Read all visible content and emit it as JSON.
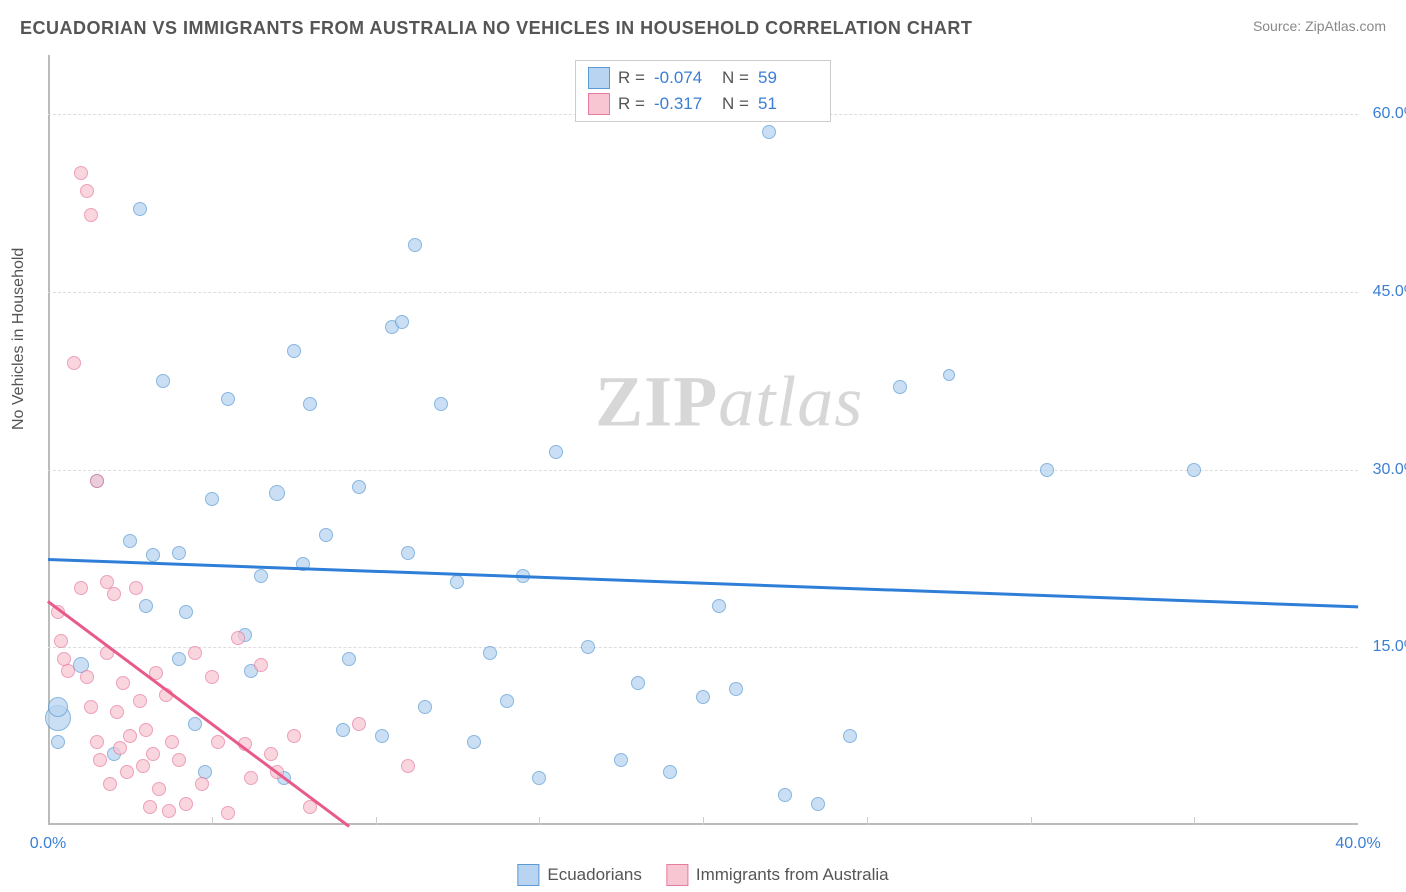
{
  "title": "ECUADORIAN VS IMMIGRANTS FROM AUSTRALIA NO VEHICLES IN HOUSEHOLD CORRELATION CHART",
  "source_label": "Source: ZipAtlas.com",
  "y_axis_label": "No Vehicles in Household",
  "watermark": {
    "part1": "ZIP",
    "part2": "atlas"
  },
  "chart": {
    "type": "scatter",
    "background_color": "#ffffff",
    "grid_color": "#dddddd",
    "axis_color": "#bbbbbb",
    "xlim": [
      0,
      40
    ],
    "ylim": [
      0,
      65
    ],
    "x_ticks": [
      0,
      40
    ],
    "x_tick_labels": [
      "0.0%",
      "40.0%"
    ],
    "x_minor_ticks": [
      5,
      10,
      15,
      20,
      25,
      30,
      35
    ],
    "y_ticks": [
      15,
      30,
      45,
      60
    ],
    "y_tick_labels": [
      "15.0%",
      "30.0%",
      "45.0%",
      "60.0%"
    ],
    "tick_label_color": "#3a7fd5",
    "tick_label_fontsize": 16,
    "series": [
      {
        "name": "Ecuadorians",
        "marker_fill": "#b8d4f0",
        "marker_stroke": "#5a9bd5",
        "marker_opacity": 0.72,
        "marker_radius_range": [
          5,
          14
        ],
        "trend": {
          "x1": 0,
          "y1": 22.5,
          "x2": 40,
          "y2": 18.5,
          "color": "#2f7ed8",
          "width": 2.5
        },
        "R": "-0.074",
        "N": "59",
        "points": [
          {
            "x": 0.3,
            "y": 9.0,
            "r": 13
          },
          {
            "x": 0.3,
            "y": 10.0,
            "r": 10
          },
          {
            "x": 0.3,
            "y": 7.0,
            "r": 7
          },
          {
            "x": 1.0,
            "y": 13.5,
            "r": 8
          },
          {
            "x": 1.5,
            "y": 29.0,
            "r": 7
          },
          {
            "x": 2.0,
            "y": 6.0,
            "r": 7
          },
          {
            "x": 2.5,
            "y": 24.0,
            "r": 7
          },
          {
            "x": 2.8,
            "y": 52.0,
            "r": 7
          },
          {
            "x": 3.0,
            "y": 18.5,
            "r": 7
          },
          {
            "x": 3.2,
            "y": 22.8,
            "r": 7
          },
          {
            "x": 3.5,
            "y": 37.5,
            "r": 7
          },
          {
            "x": 4.0,
            "y": 14.0,
            "r": 7
          },
          {
            "x": 4.0,
            "y": 23.0,
            "r": 7
          },
          {
            "x": 4.2,
            "y": 18.0,
            "r": 7
          },
          {
            "x": 4.5,
            "y": 8.5,
            "r": 7
          },
          {
            "x": 5.0,
            "y": 27.5,
            "r": 7
          },
          {
            "x": 5.5,
            "y": 36.0,
            "r": 7
          },
          {
            "x": 6.0,
            "y": 16.0,
            "r": 7
          },
          {
            "x": 6.2,
            "y": 13.0,
            "r": 7
          },
          {
            "x": 6.5,
            "y": 21.0,
            "r": 7
          },
          {
            "x": 7.0,
            "y": 28.0,
            "r": 8
          },
          {
            "x": 7.5,
            "y": 40.0,
            "r": 7
          },
          {
            "x": 7.8,
            "y": 22.0,
            "r": 7
          },
          {
            "x": 8.0,
            "y": 35.5,
            "r": 7
          },
          {
            "x": 8.5,
            "y": 24.5,
            "r": 7
          },
          {
            "x": 9.0,
            "y": 8.0,
            "r": 7
          },
          {
            "x": 9.2,
            "y": 14.0,
            "r": 7
          },
          {
            "x": 9.5,
            "y": 28.5,
            "r": 7
          },
          {
            "x": 10.5,
            "y": 42.0,
            "r": 7
          },
          {
            "x": 10.8,
            "y": 42.5,
            "r": 7
          },
          {
            "x": 10.2,
            "y": 7.5,
            "r": 7
          },
          {
            "x": 11.0,
            "y": 23.0,
            "r": 7
          },
          {
            "x": 11.2,
            "y": 49.0,
            "r": 7
          },
          {
            "x": 11.5,
            "y": 10.0,
            "r": 7
          },
          {
            "x": 12.0,
            "y": 35.5,
            "r": 7
          },
          {
            "x": 12.5,
            "y": 20.5,
            "r": 7
          },
          {
            "x": 13.0,
            "y": 7.0,
            "r": 7
          },
          {
            "x": 13.5,
            "y": 14.5,
            "r": 7
          },
          {
            "x": 14.0,
            "y": 10.5,
            "r": 7
          },
          {
            "x": 14.5,
            "y": 21.0,
            "r": 7
          },
          {
            "x": 15.0,
            "y": 4.0,
            "r": 7
          },
          {
            "x": 15.5,
            "y": 31.5,
            "r": 7
          },
          {
            "x": 16.5,
            "y": 15.0,
            "r": 7
          },
          {
            "x": 17.5,
            "y": 5.5,
            "r": 7
          },
          {
            "x": 18.0,
            "y": 12.0,
            "r": 7
          },
          {
            "x": 19.0,
            "y": 4.5,
            "r": 7
          },
          {
            "x": 20.0,
            "y": 10.8,
            "r": 7
          },
          {
            "x": 20.5,
            "y": 18.5,
            "r": 7
          },
          {
            "x": 21.0,
            "y": 11.5,
            "r": 7
          },
          {
            "x": 22.0,
            "y": 58.5,
            "r": 7
          },
          {
            "x": 22.5,
            "y": 2.5,
            "r": 7
          },
          {
            "x": 23.5,
            "y": 1.8,
            "r": 7
          },
          {
            "x": 24.5,
            "y": 7.5,
            "r": 7
          },
          {
            "x": 26.0,
            "y": 37.0,
            "r": 7
          },
          {
            "x": 27.5,
            "y": 38.0,
            "r": 6
          },
          {
            "x": 30.5,
            "y": 30.0,
            "r": 7
          },
          {
            "x": 35.0,
            "y": 30.0,
            "r": 7
          },
          {
            "x": 4.8,
            "y": 4.5,
            "r": 7
          },
          {
            "x": 7.2,
            "y": 4.0,
            "r": 7
          }
        ]
      },
      {
        "name": "Immigrants from Australia",
        "marker_fill": "#f7c6d2",
        "marker_stroke": "#e87ba0",
        "marker_opacity": 0.72,
        "marker_radius_range": [
          5,
          10
        ],
        "trend": {
          "x1": 0,
          "y1": 19.0,
          "x2": 9.2,
          "y2": 0,
          "color": "#e85a8a",
          "width": 2.5
        },
        "R": "-0.317",
        "N": "51",
        "points": [
          {
            "x": 0.3,
            "y": 18.0,
            "r": 7
          },
          {
            "x": 0.4,
            "y": 15.5,
            "r": 7
          },
          {
            "x": 0.5,
            "y": 14.0,
            "r": 7
          },
          {
            "x": 0.6,
            "y": 13.0,
            "r": 7
          },
          {
            "x": 0.8,
            "y": 39.0,
            "r": 7
          },
          {
            "x": 1.0,
            "y": 55.0,
            "r": 7
          },
          {
            "x": 1.2,
            "y": 53.5,
            "r": 7
          },
          {
            "x": 1.3,
            "y": 51.5,
            "r": 7
          },
          {
            "x": 1.0,
            "y": 20.0,
            "r": 7
          },
          {
            "x": 1.2,
            "y": 12.5,
            "r": 7
          },
          {
            "x": 1.3,
            "y": 10.0,
            "r": 7
          },
          {
            "x": 1.5,
            "y": 29.0,
            "r": 7
          },
          {
            "x": 1.5,
            "y": 7.0,
            "r": 7
          },
          {
            "x": 1.6,
            "y": 5.5,
            "r": 7
          },
          {
            "x": 1.8,
            "y": 20.5,
            "r": 7
          },
          {
            "x": 1.8,
            "y": 14.5,
            "r": 7
          },
          {
            "x": 1.9,
            "y": 3.5,
            "r": 7
          },
          {
            "x": 2.0,
            "y": 19.5,
            "r": 7
          },
          {
            "x": 2.1,
            "y": 9.5,
            "r": 7
          },
          {
            "x": 2.2,
            "y": 6.5,
            "r": 7
          },
          {
            "x": 2.3,
            "y": 12.0,
            "r": 7
          },
          {
            "x": 2.4,
            "y": 4.5,
            "r": 7
          },
          {
            "x": 2.5,
            "y": 7.5,
            "r": 7
          },
          {
            "x": 2.7,
            "y": 20.0,
            "r": 7
          },
          {
            "x": 2.8,
            "y": 10.5,
            "r": 7
          },
          {
            "x": 2.9,
            "y": 5.0,
            "r": 7
          },
          {
            "x": 3.0,
            "y": 8.0,
            "r": 7
          },
          {
            "x": 3.1,
            "y": 1.5,
            "r": 7
          },
          {
            "x": 3.2,
            "y": 6.0,
            "r": 7
          },
          {
            "x": 3.3,
            "y": 12.8,
            "r": 7
          },
          {
            "x": 3.4,
            "y": 3.0,
            "r": 7
          },
          {
            "x": 3.6,
            "y": 11.0,
            "r": 7
          },
          {
            "x": 3.7,
            "y": 1.2,
            "r": 7
          },
          {
            "x": 3.8,
            "y": 7.0,
            "r": 7
          },
          {
            "x": 4.0,
            "y": 5.5,
            "r": 7
          },
          {
            "x": 4.2,
            "y": 1.8,
            "r": 7
          },
          {
            "x": 4.5,
            "y": 14.5,
            "r": 7
          },
          {
            "x": 4.7,
            "y": 3.5,
            "r": 7
          },
          {
            "x": 5.0,
            "y": 12.5,
            "r": 7
          },
          {
            "x": 5.2,
            "y": 7.0,
            "r": 7
          },
          {
            "x": 5.5,
            "y": 1.0,
            "r": 7
          },
          {
            "x": 5.8,
            "y": 15.8,
            "r": 7
          },
          {
            "x": 6.0,
            "y": 6.8,
            "r": 7
          },
          {
            "x": 6.2,
            "y": 4.0,
            "r": 7
          },
          {
            "x": 6.5,
            "y": 13.5,
            "r": 7
          },
          {
            "x": 6.8,
            "y": 6.0,
            "r": 7
          },
          {
            "x": 7.0,
            "y": 4.5,
            "r": 7
          },
          {
            "x": 7.5,
            "y": 7.5,
            "r": 7
          },
          {
            "x": 8.0,
            "y": 1.5,
            "r": 7
          },
          {
            "x": 9.5,
            "y": 8.5,
            "r": 7
          },
          {
            "x": 11.0,
            "y": 5.0,
            "r": 7
          }
        ]
      }
    ]
  },
  "legend_top": {
    "rows": [
      {
        "swatch_fill": "#b8d4f0",
        "swatch_stroke": "#5a9bd5",
        "R_label": "R =",
        "R_val": "-0.074",
        "N_label": "N =",
        "N_val": "59"
      },
      {
        "swatch_fill": "#f7c6d2",
        "swatch_stroke": "#e87ba0",
        "R_label": "R =",
        "R_val": "-0.317",
        "N_label": "N =",
        "N_val": "51"
      }
    ]
  },
  "legend_bottom": {
    "items": [
      {
        "swatch_fill": "#b8d4f0",
        "swatch_stroke": "#5a9bd5",
        "label": "Ecuadorians"
      },
      {
        "swatch_fill": "#f7c6d2",
        "swatch_stroke": "#e87ba0",
        "label": "Immigrants from Australia"
      }
    ]
  }
}
